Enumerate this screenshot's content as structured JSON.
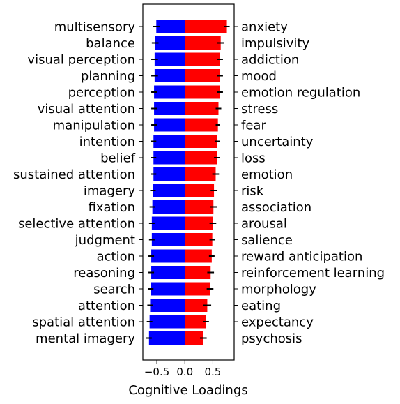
{
  "chart_data": {
    "type": "bar",
    "orientation": "horizontal",
    "xlabel": "Cognitive Loadings",
    "xlim": [
      -0.75,
      0.88
    ],
    "x_ticks": [
      -0.5,
      0.0,
      0.5
    ],
    "x_tick_labels": [
      "−0.5",
      "0.0",
      "0.5"
    ],
    "grid": false,
    "legend": "none",
    "negative": {
      "color": "#0000ff",
      "labels": [
        "multisensory",
        "balance",
        "visual perception",
        "planning",
        "perception",
        "visual attention",
        "manipulation",
        "intention",
        "belief",
        "sustained attention",
        "imagery",
        "fixation",
        "selective attention",
        "judgment",
        "action",
        "reasoning",
        "search",
        "attention",
        "spatial attention",
        "mental imagery"
      ],
      "values": [
        -0.51,
        -0.53,
        -0.54,
        -0.54,
        -0.55,
        -0.55,
        -0.55,
        -0.56,
        -0.56,
        -0.56,
        -0.57,
        -0.58,
        -0.59,
        -0.59,
        -0.6,
        -0.6,
        -0.61,
        -0.62,
        -0.63,
        -0.64
      ],
      "errors": [
        0.06,
        0.06,
        0.06,
        0.06,
        0.05,
        0.05,
        0.05,
        0.05,
        0.05,
        0.05,
        0.05,
        0.05,
        0.05,
        0.05,
        0.05,
        0.05,
        0.05,
        0.05,
        0.05,
        0.05
      ]
    },
    "positive": {
      "color": "#ff0000",
      "labels": [
        "anxiety",
        "impulsivity",
        "addiction",
        "mood",
        "emotion regulation",
        "stress",
        "fear",
        "uncertainty",
        "loss",
        "emotion",
        "risk",
        "association",
        "arousal",
        "salience",
        "reward anticipation",
        "reinforcement learning",
        "morphology",
        "eating",
        "expectancy",
        "psychosis"
      ],
      "values": [
        0.75,
        0.64,
        0.63,
        0.63,
        0.63,
        0.6,
        0.59,
        0.58,
        0.57,
        0.55,
        0.52,
        0.51,
        0.5,
        0.49,
        0.48,
        0.46,
        0.45,
        0.4,
        0.38,
        0.33
      ],
      "errors": [
        0.05,
        0.06,
        0.05,
        0.05,
        0.05,
        0.05,
        0.04,
        0.04,
        0.05,
        0.06,
        0.06,
        0.06,
        0.06,
        0.05,
        0.05,
        0.06,
        0.06,
        0.07,
        0.05,
        0.06
      ]
    }
  }
}
